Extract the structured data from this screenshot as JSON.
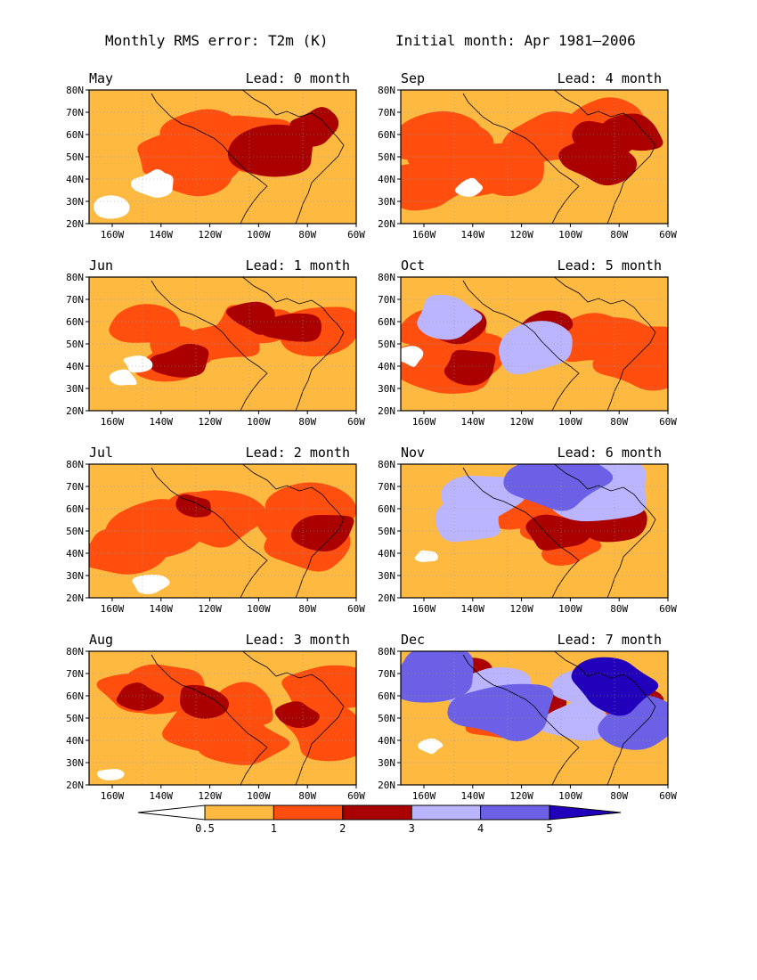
{
  "figure": {
    "title_left": "Monthly RMS error: T2m (K)",
    "title_right": "Initial month: Apr 1981–2006"
  },
  "x_ticks": [
    "160W",
    "140W",
    "120W",
    "100W",
    "80W",
    "60W"
  ],
  "y_ticks": [
    "80N",
    "70N",
    "60N",
    "50N",
    "40N",
    "30N",
    "20N"
  ],
  "colorbar": {
    "labels": [
      "0.5",
      "1",
      "2",
      "3",
      "4",
      "5"
    ],
    "colors": [
      "#ffffff",
      "#feb941",
      "#ff4e0e",
      "#aa0000",
      "#bbb5ff",
      "#6c61e6",
      "#2200bb"
    ]
  },
  "panels": [
    {
      "month": "May",
      "lead": "Lead: 0 month",
      "levels": [
        [
          20,
          5
        ],
        [
          40,
          8
        ],
        [
          30,
          10
        ],
        [
          10,
          18
        ],
        [
          0,
          0
        ],
        [
          0,
          0
        ],
        [
          0,
          0
        ]
      ]
    },
    {
      "month": "Jun",
      "lead": "Lead: 1 month",
      "levels": [
        [
          12,
          5
        ],
        [
          30,
          6
        ],
        [
          38,
          7
        ],
        [
          20,
          10
        ],
        [
          0,
          0
        ],
        [
          0,
          0
        ],
        [
          0,
          0
        ]
      ]
    },
    {
      "month": "Jul",
      "lead": "Lead: 2 month",
      "levels": [
        [
          10,
          4
        ],
        [
          28,
          8
        ],
        [
          50,
          6
        ],
        [
          12,
          10
        ],
        [
          0,
          0
        ],
        [
          0,
          0
        ],
        [
          0,
          0
        ]
      ]
    },
    {
      "month": "Aug",
      "lead": "Lead: 3 month",
      "levels": [
        [
          10,
          4
        ],
        [
          30,
          8
        ],
        [
          45,
          6
        ],
        [
          15,
          10
        ],
        [
          0,
          0
        ],
        [
          0,
          0
        ],
        [
          0,
          0
        ]
      ]
    },
    {
      "month": "Sep",
      "lead": "Lead: 4 month",
      "levels": [
        [
          5,
          3
        ],
        [
          30,
          8
        ],
        [
          45,
          8
        ],
        [
          20,
          12
        ],
        [
          0,
          0
        ],
        [
          0,
          0
        ],
        [
          0,
          0
        ]
      ]
    },
    {
      "month": "Oct",
      "lead": "Lead: 5 month",
      "levels": [
        [
          8,
          4
        ],
        [
          27,
          8
        ],
        [
          40,
          9
        ],
        [
          15,
          12
        ],
        [
          10,
          18
        ],
        [
          0,
          0
        ],
        [
          0,
          0
        ]
      ]
    },
    {
      "month": "Nov",
      "lead": "Lead: 6 month",
      "levels": [
        [
          4,
          3
        ],
        [
          25,
          8
        ],
        [
          25,
          10
        ],
        [
          18,
          12
        ],
        [
          20,
          18
        ],
        [
          8,
          20
        ],
        [
          0,
          0
        ]
      ]
    },
    {
      "month": "Dec",
      "lead": "Lead: 7 month",
      "levels": [
        [
          2,
          3
        ],
        [
          25,
          8
        ],
        [
          20,
          10
        ],
        [
          15,
          12
        ],
        [
          18,
          16
        ],
        [
          15,
          20
        ],
        [
          5,
          22
        ]
      ]
    }
  ]
}
